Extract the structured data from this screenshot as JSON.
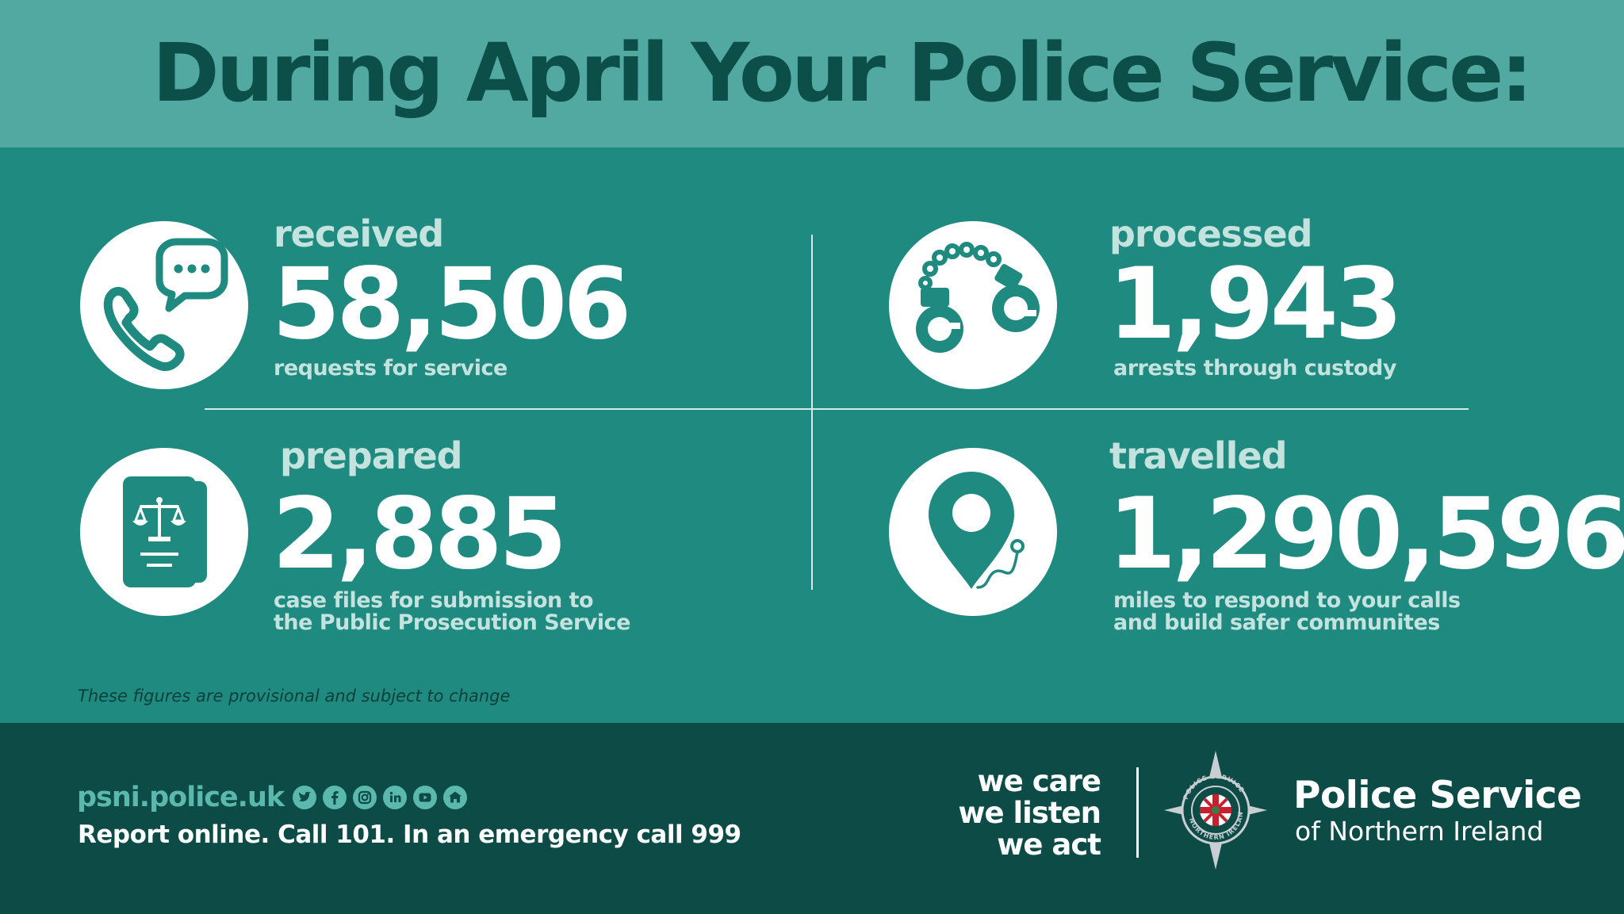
{
  "header": {
    "title": "During April Your Police Service:"
  },
  "stats": [
    {
      "verb": "received",
      "value": "58,506",
      "desc_lines": [
        "requests for service"
      ],
      "icon": "phone-chat-icon"
    },
    {
      "verb": "processed",
      "value": "1,943",
      "desc_lines": [
        "arrests through custody"
      ],
      "icon": "handcuffs-icon"
    },
    {
      "verb": "prepared",
      "value": "2,885",
      "desc_lines": [
        "case files for submission to",
        "the Public Prosecution Service"
      ],
      "icon": "legal-document-icon"
    },
    {
      "verb": "travelled",
      "value": "1,290,596",
      "desc_lines": [
        "miles to respond to your calls",
        "and build safer communites"
      ],
      "icon": "map-pin-icon"
    }
  ],
  "disclaimer": "These figures are provisional and subject to change",
  "footer": {
    "website": "psni.police.uk",
    "social_icons": [
      "twitter-icon",
      "facebook-icon",
      "instagram-icon",
      "linkedin-icon",
      "youtube-icon",
      "nextdoor-icon"
    ],
    "report_text": "Report online. Call 101. In an emergency call 999",
    "slogan": [
      "we care",
      "we listen",
      "we act"
    ],
    "org_name_line1": "Police Service",
    "org_name_line2": "of Northern Ireland"
  },
  "colors": {
    "header_band": "#52a9a2",
    "headline_text": "#0c4f49",
    "main_bg": "#1e8a80",
    "footer_bg": "#0c4b46",
    "accent_light": "#c4e2de",
    "website_green": "#5bb8ad"
  }
}
